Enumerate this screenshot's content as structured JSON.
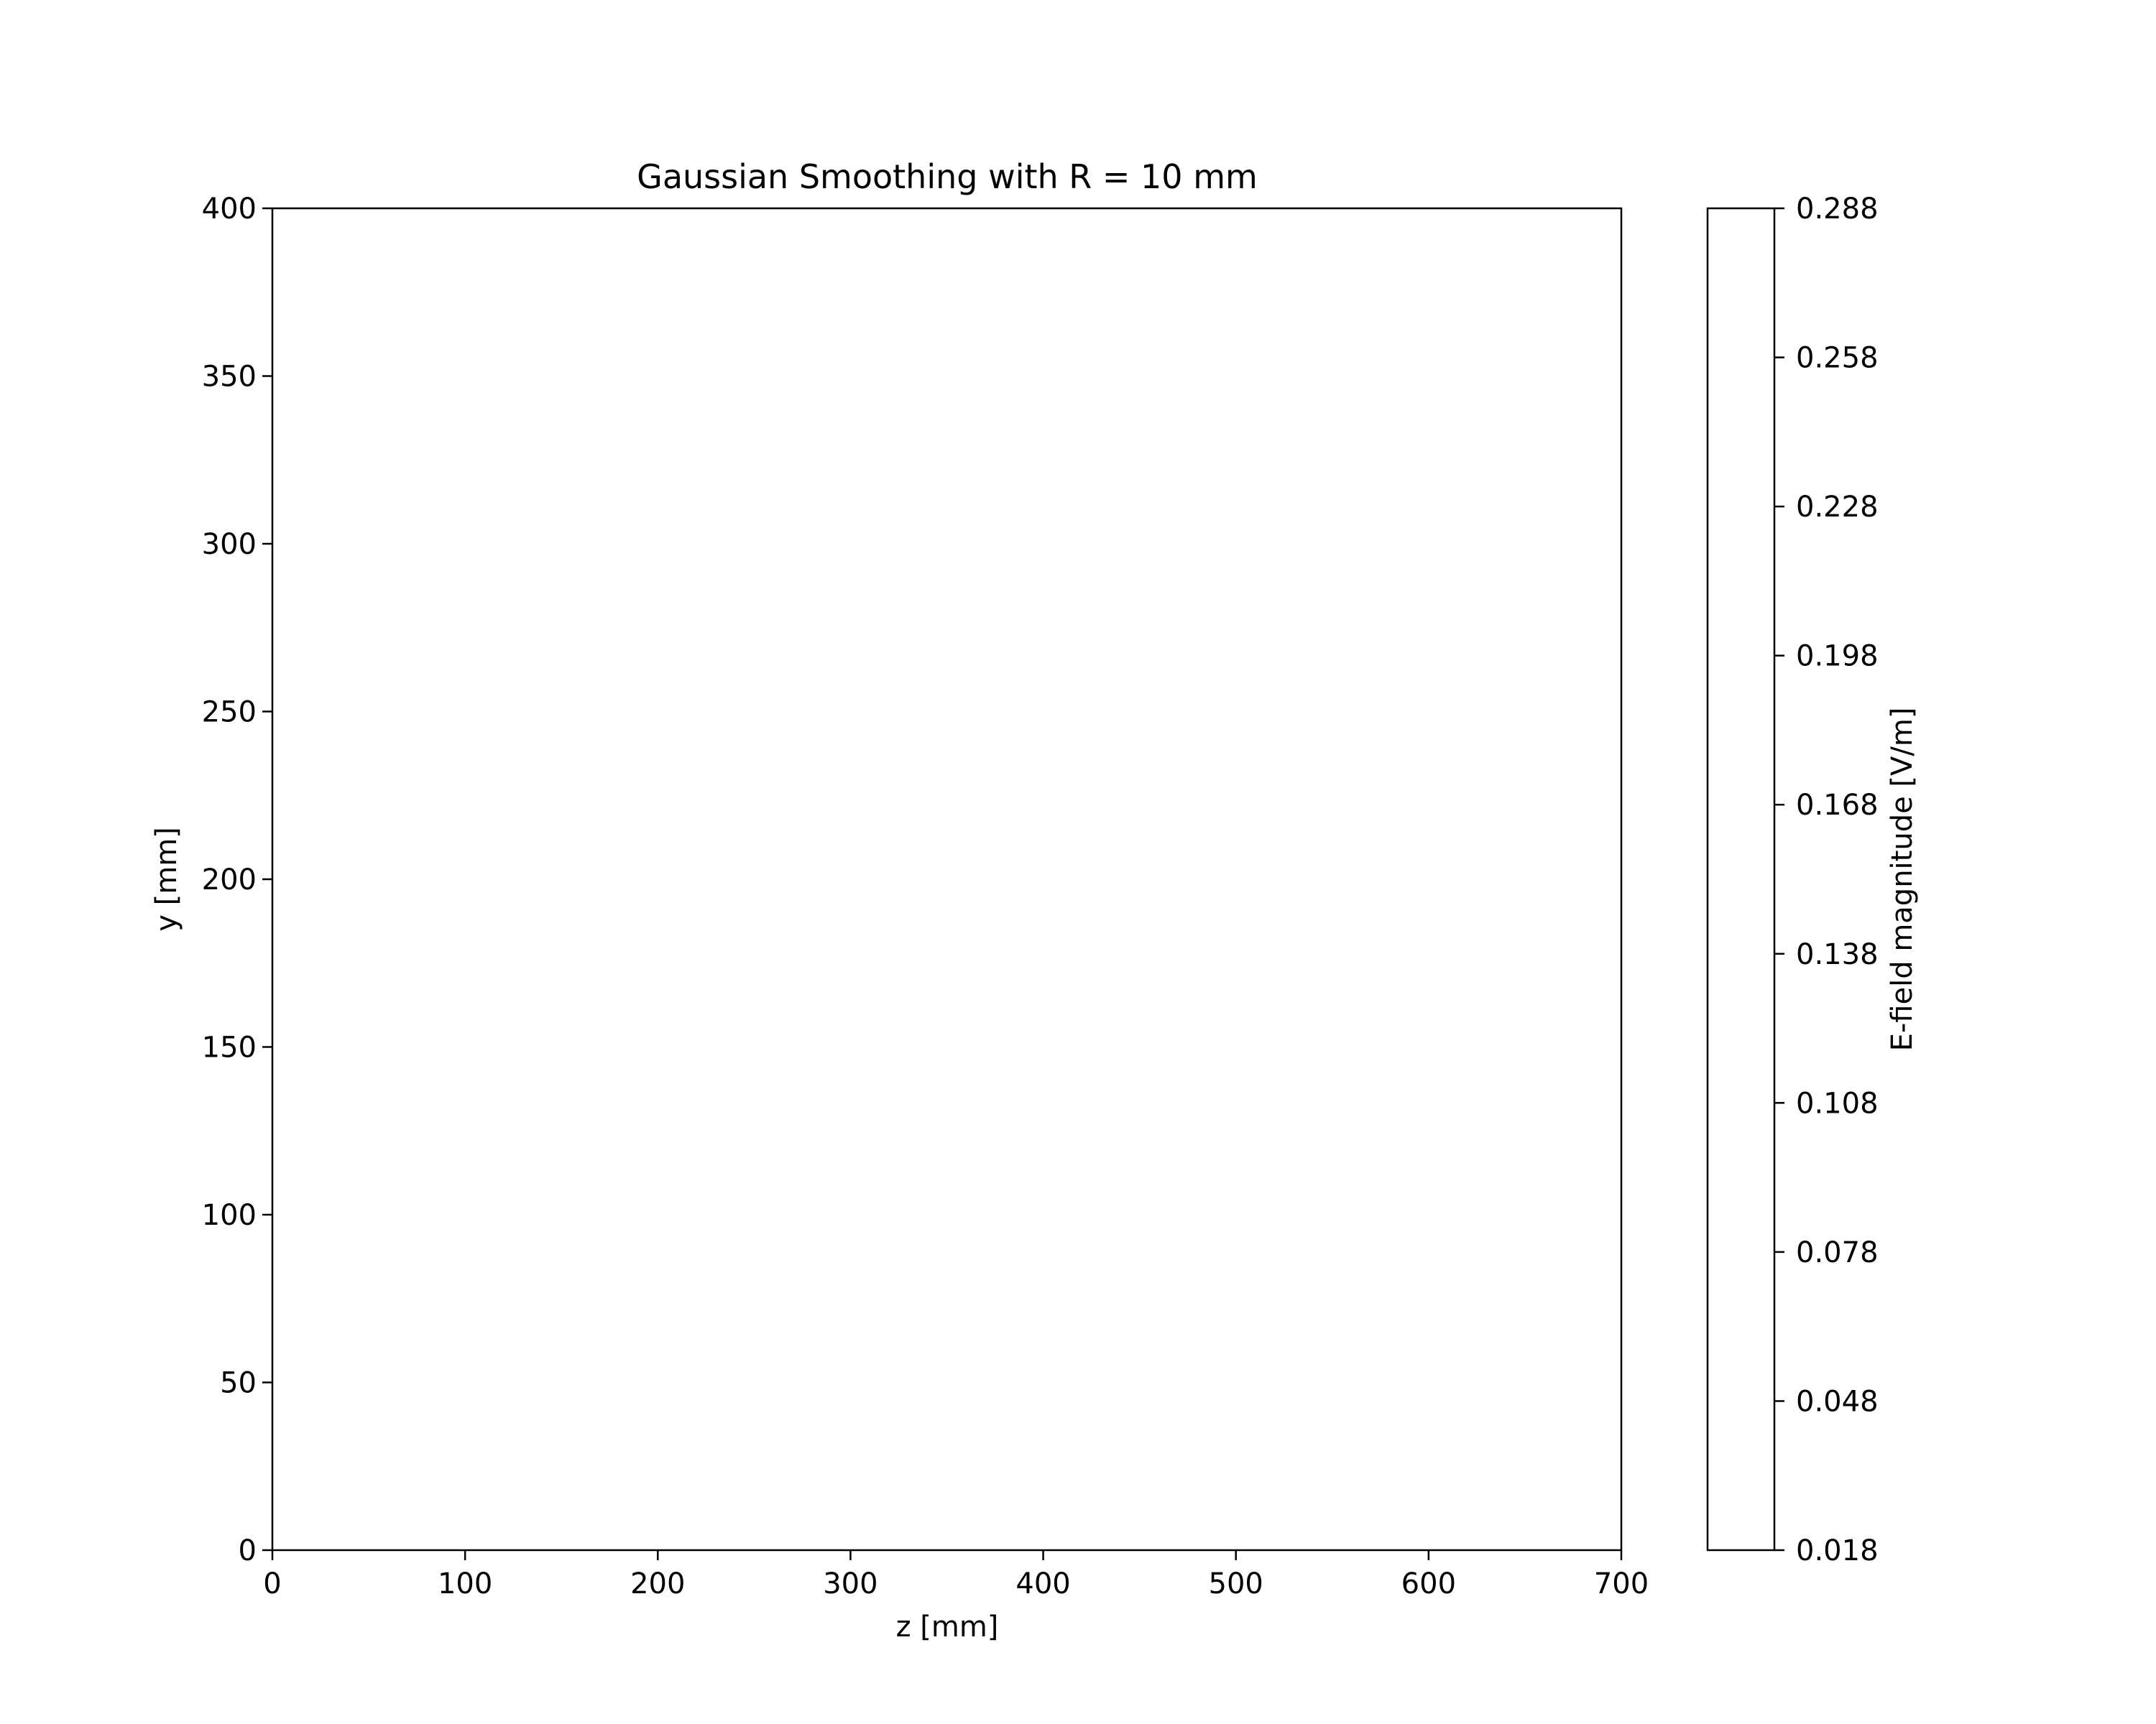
{
  "chart_data": {
    "type": "heatmap",
    "title": "Gaussian Smoothing with R = 10 mm",
    "xlabel": "z [mm]",
    "ylabel": "y [mm]",
    "xlim": [
      0,
      700
    ],
    "ylim": [
      0,
      400
    ],
    "xticks": [
      0,
      100,
      200,
      300,
      400,
      500,
      600,
      700
    ],
    "yticks": [
      0,
      50,
      100,
      150,
      200,
      250,
      300,
      350,
      400
    ],
    "grid": false,
    "plot_fill": "#ffffff",
    "colorbar": {
      "label": "E-field magnitude [V/m]",
      "range": [
        0.018,
        0.288
      ],
      "ticks": [
        "0.018",
        "0.048",
        "0.078",
        "0.108",
        "0.138",
        "0.168",
        "0.198",
        "0.228",
        "0.258",
        "0.288"
      ],
      "fill": "#ffffff"
    }
  }
}
